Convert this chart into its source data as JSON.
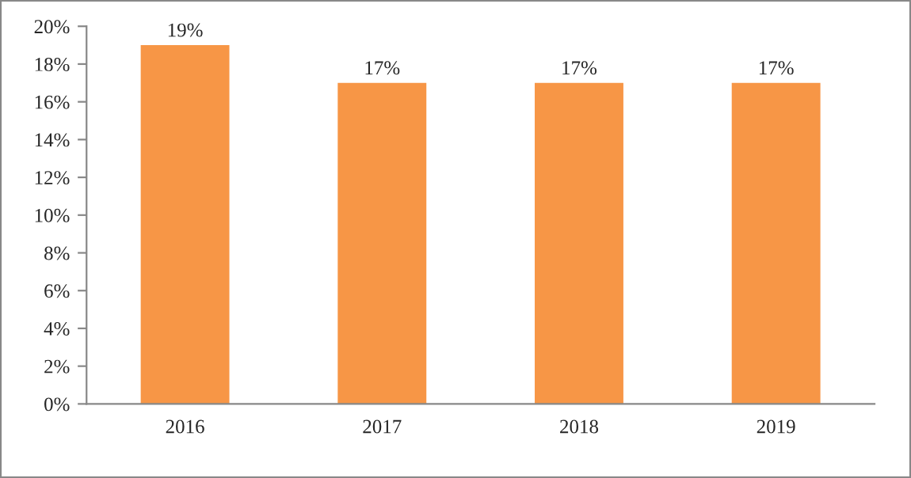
{
  "chart_data": {
    "type": "bar",
    "categories": [
      "2016",
      "2017",
      "2018",
      "2019"
    ],
    "values": [
      19,
      17,
      17,
      17
    ],
    "value_labels": [
      "19%",
      "17%",
      "17%",
      "17%"
    ],
    "color": "#f79646",
    "ylim": [
      0,
      20
    ],
    "yticks": [
      {
        "value": 0,
        "label": "0%"
      },
      {
        "value": 2,
        "label": "2%"
      },
      {
        "value": 4,
        "label": "4%"
      },
      {
        "value": 6,
        "label": "6%"
      },
      {
        "value": 8,
        "label": "8%"
      },
      {
        "value": 10,
        "label": "10%"
      },
      {
        "value": 12,
        "label": "12%"
      },
      {
        "value": 14,
        "label": "14%"
      },
      {
        "value": 16,
        "label": "16%"
      },
      {
        "value": 18,
        "label": "18%"
      },
      {
        "value": 20,
        "label": "20%"
      }
    ],
    "grid": false,
    "legend": false
  }
}
